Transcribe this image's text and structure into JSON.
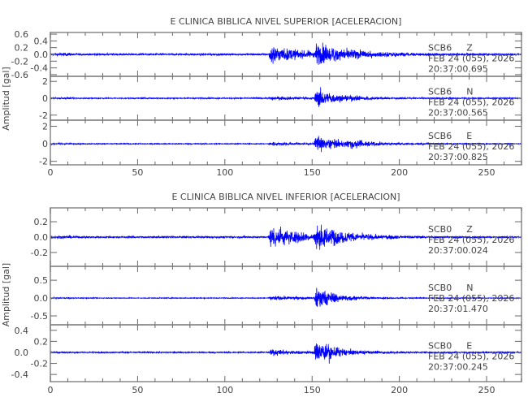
{
  "chart_data": [
    {
      "type": "line",
      "title": "E CLINICA BIBLICA NIVEL SUPERIOR [ACELERACION]",
      "ylabel": "Amplitud [gal]",
      "xlabel": "",
      "xlim": [
        0,
        270
      ],
      "xticks": [
        "0",
        "50",
        "100",
        "150",
        "200",
        "250"
      ],
      "line_color": "#0000ff",
      "traces": [
        {
          "station": "SCB6",
          "component": "Z",
          "date": "FEB 24 (055), 2026",
          "time": "20:37:00.695",
          "ylim": [
            -0.65,
            0.65
          ],
          "yticks": [
            "0.6",
            "0.4",
            "0.2",
            "0.0",
            "-0.2",
            "-0.4",
            "-0.6"
          ],
          "ytick_values": [
            0.6,
            0.4,
            0.2,
            0,
            -0.2,
            -0.4,
            -0.6
          ],
          "noise_amplitude": 0.05,
          "events": [
            {
              "onset": 125,
              "peak": 0.6,
              "decay": 18
            },
            {
              "onset": 151,
              "peak": 0.6,
              "decay": 20
            }
          ]
        },
        {
          "station": "SCB6",
          "component": "N",
          "date": "FEB 24 (055), 2026",
          "time": "20:37:00.565",
          "ylim": [
            -2.6,
            2.6
          ],
          "yticks": [
            "2",
            "0",
            "-2"
          ],
          "ytick_values": [
            2,
            0,
            -2
          ],
          "noise_amplitude": 0.12,
          "events": [
            {
              "onset": 125,
              "peak": 0.35,
              "decay": 25
            },
            {
              "onset": 151,
              "peak": 2.5,
              "decay": 14
            }
          ]
        },
        {
          "station": "SCB6",
          "component": "E",
          "date": "FEB 24 (055), 2026",
          "time": "20:37:00.825",
          "ylim": [
            -2.4,
            2.7
          ],
          "yticks": [
            "2",
            "0",
            "-2"
          ],
          "ytick_values": [
            2,
            0,
            -2
          ],
          "noise_amplitude": 0.1,
          "events": [
            {
              "onset": 125,
              "peak": 0.35,
              "decay": 25
            },
            {
              "onset": 151,
              "peak": 2.3,
              "decay": 12
            },
            {
              "onset": 170,
              "peak": 0.9,
              "decay": 14
            }
          ]
        }
      ]
    },
    {
      "type": "line",
      "title": "E CLINICA BIBLICA NIVEL INFERIOR [ACELERACION]",
      "ylabel": "Amplitud [gal]",
      "xlabel": "",
      "xlim": [
        0,
        270
      ],
      "xticks": [
        "0",
        "50",
        "100",
        "150",
        "200",
        "250"
      ],
      "line_color": "#0000ff",
      "traces": [
        {
          "station": "SCB0",
          "component": "Z",
          "date": "FEB 24 (055), 2026",
          "time": "20:37:00.024",
          "ylim": [
            -0.38,
            0.38
          ],
          "yticks": [
            "0.2",
            "0.0",
            "-0.2"
          ],
          "ytick_values": [
            0.2,
            0,
            -0.2
          ],
          "noise_amplitude": 0.02,
          "events": [
            {
              "onset": 125,
              "peak": 0.33,
              "decay": 18
            },
            {
              "onset": 151,
              "peak": 0.33,
              "decay": 16
            }
          ]
        },
        {
          "station": "SCB0",
          "component": "N",
          "date": "FEB 24 (055), 2026",
          "time": "20:37:01.470",
          "ylim": [
            -0.75,
            0.89
          ],
          "yticks": [
            "0.5",
            "0.0",
            "-0.5"
          ],
          "ytick_values": [
            0.5,
            0,
            -0.5
          ],
          "noise_amplitude": 0.02,
          "events": [
            {
              "onset": 125,
              "peak": 0.12,
              "decay": 25
            },
            {
              "onset": 151,
              "peak": 0.85,
              "decay": 10
            }
          ]
        },
        {
          "station": "SCB0",
          "component": "E",
          "date": "FEB 24 (055), 2026",
          "time": "20:37:00.245",
          "ylim": [
            -0.53,
            0.5
          ],
          "yticks": [
            "0.4",
            "0.2",
            "0.0",
            "-0.2",
            "-0.4"
          ],
          "ytick_values": [
            0.4,
            0.2,
            0,
            -0.2,
            -0.4
          ],
          "noise_amplitude": 0.02,
          "events": [
            {
              "onset": 125,
              "peak": 0.1,
              "decay": 25
            },
            {
              "onset": 151,
              "peak": 0.45,
              "decay": 12
            }
          ]
        }
      ]
    }
  ]
}
